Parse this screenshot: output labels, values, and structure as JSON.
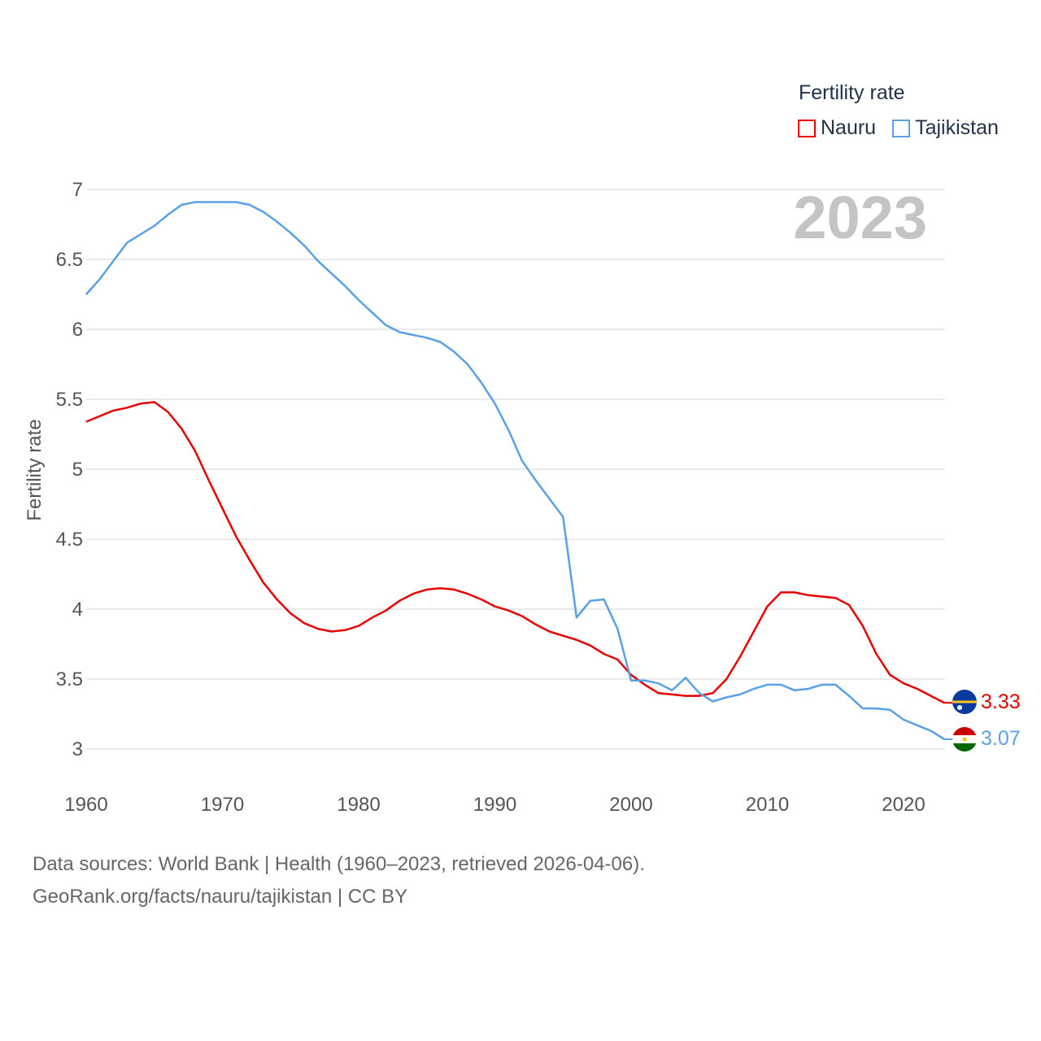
{
  "legend": {
    "title": "Fertility rate",
    "items": [
      {
        "name": "Nauru",
        "color": "#e60000"
      },
      {
        "name": "Tajikistan",
        "color": "#5aa0e6"
      }
    ]
  },
  "year_label": "2023",
  "footer": {
    "line1": "Data sources: World Bank | Health (1960–2023, retrieved 2026-04-06).",
    "line2": "GeoRank.org/facts/nauru/tajikistan | CC BY"
  },
  "chart_data": {
    "type": "line",
    "title": "Fertility rate",
    "xlabel": "",
    "ylabel": "Fertility rate",
    "xlim": [
      1960,
      2023
    ],
    "ylim": [
      2.8,
      7.1
    ],
    "xticks": [
      1960,
      1970,
      1980,
      1990,
      2000,
      2010,
      2020
    ],
    "yticks": [
      3,
      3.5,
      4,
      4.5,
      5,
      5.5,
      6,
      6.5,
      7
    ],
    "ytick_labels": [
      "3",
      "3.5",
      "4",
      "4.5",
      "5",
      "5.5",
      "6",
      "6.5",
      "7"
    ],
    "grid": true,
    "x": [
      1960,
      1961,
      1962,
      1963,
      1964,
      1965,
      1966,
      1967,
      1968,
      1969,
      1970,
      1971,
      1972,
      1973,
      1974,
      1975,
      1976,
      1977,
      1978,
      1979,
      1980,
      1981,
      1982,
      1983,
      1984,
      1985,
      1986,
      1987,
      1988,
      1989,
      1990,
      1991,
      1992,
      1993,
      1994,
      1995,
      1996,
      1997,
      1998,
      1999,
      2000,
      2001,
      2002,
      2003,
      2004,
      2005,
      2006,
      2007,
      2008,
      2009,
      2010,
      2011,
      2012,
      2013,
      2014,
      2015,
      2016,
      2017,
      2018,
      2019,
      2020,
      2021,
      2022,
      2023
    ],
    "series": [
      {
        "name": "Nauru",
        "color": "#e60000",
        "end_label": "3.33",
        "values": [
          5.34,
          5.38,
          5.42,
          5.44,
          5.47,
          5.48,
          5.41,
          5.29,
          5.13,
          4.92,
          4.72,
          4.52,
          4.35,
          4.19,
          4.07,
          3.97,
          3.9,
          3.86,
          3.84,
          3.85,
          3.88,
          3.94,
          3.99,
          4.06,
          4.11,
          4.14,
          4.15,
          4.14,
          4.11,
          4.07,
          4.02,
          3.99,
          3.95,
          3.89,
          3.84,
          3.81,
          3.78,
          3.74,
          3.68,
          3.64,
          3.53,
          3.46,
          3.4,
          3.39,
          3.38,
          3.38,
          3.4,
          3.5,
          3.66,
          3.84,
          4.02,
          4.12,
          4.12,
          4.1,
          4.09,
          4.08,
          4.03,
          3.88,
          3.68,
          3.53,
          3.47,
          3.43,
          3.38,
          3.33
        ]
      },
      {
        "name": "Tajikistan",
        "color": "#5aa0e6",
        "end_label": "3.07",
        "values": [
          6.25,
          6.36,
          6.49,
          6.62,
          6.68,
          6.74,
          6.82,
          6.89,
          6.91,
          6.91,
          6.91,
          6.91,
          6.89,
          6.84,
          6.77,
          6.69,
          6.6,
          6.49,
          6.4,
          6.31,
          6.21,
          6.12,
          6.03,
          5.98,
          5.96,
          5.94,
          5.91,
          5.84,
          5.75,
          5.62,
          5.47,
          5.28,
          5.06,
          4.92,
          4.79,
          4.66,
          3.94,
          4.06,
          4.07,
          3.86,
          3.49,
          3.49,
          3.47,
          3.42,
          3.51,
          3.4,
          3.34,
          3.37,
          3.39,
          3.43,
          3.46,
          3.46,
          3.42,
          3.43,
          3.46,
          3.46,
          3.38,
          3.29,
          3.29,
          3.28,
          3.21,
          3.17,
          3.13,
          3.07
        ]
      }
    ]
  }
}
